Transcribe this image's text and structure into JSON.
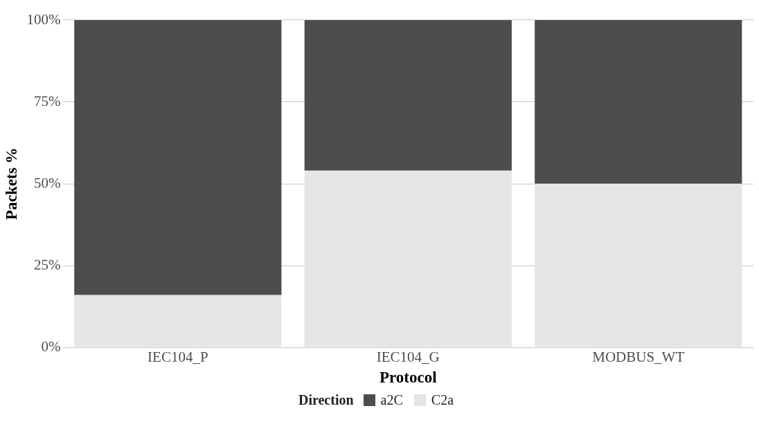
{
  "chart_data": {
    "type": "bar",
    "stacked": true,
    "xlabel": "Protocol",
    "ylabel": "Packets %",
    "legend_title": "Direction",
    "legend": "bottom",
    "grid": true,
    "categories": [
      "IEC104_P",
      "IEC104_G",
      "MODBUS_WT"
    ],
    "series": [
      {
        "name": "C2a",
        "color": "#e5e5e5",
        "values": [
          16,
          54,
          50
        ]
      },
      {
        "name": "a2C",
        "color": "#4d4d4d",
        "values": [
          84,
          46,
          50
        ]
      }
    ],
    "ylim": [
      0,
      100
    ],
    "yticks": [
      {
        "value": 0,
        "label": "0%"
      },
      {
        "value": 25,
        "label": "25%"
      },
      {
        "value": 50,
        "label": "50%"
      },
      {
        "value": 75,
        "label": "75%"
      },
      {
        "value": 100,
        "label": "100%"
      }
    ]
  }
}
